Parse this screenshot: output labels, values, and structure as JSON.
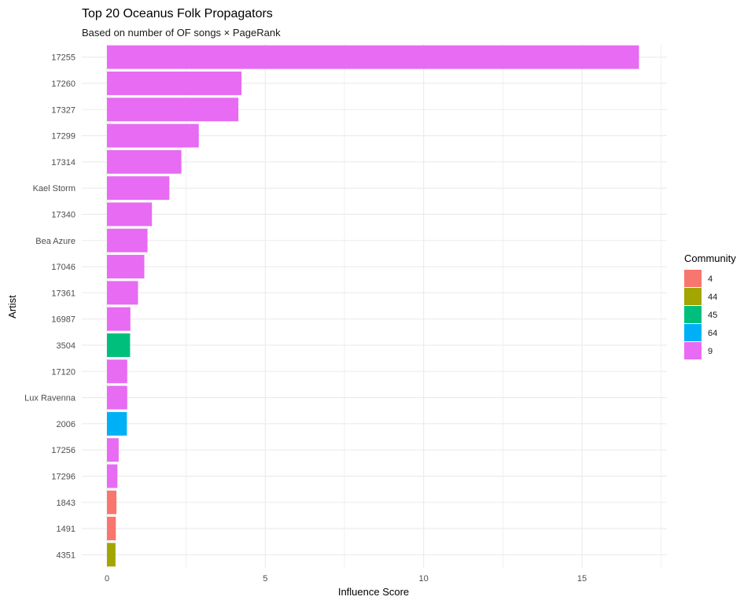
{
  "chart_data": {
    "type": "bar",
    "orientation": "horizontal",
    "title": "Top 20 Oceanus Folk Propagators",
    "subtitle": "Based on number of OF songs × PageRank",
    "xlabel": "Influence Score",
    "ylabel": "Artist",
    "xlim": [
      0,
      17.5
    ],
    "x_ticks": [
      0,
      5,
      10,
      15
    ],
    "grid": true,
    "legend_position": "right",
    "legend": {
      "title": "Community",
      "entries": [
        {
          "label": "4",
          "color": "#F8766D"
        },
        {
          "label": "44",
          "color": "#A3A500"
        },
        {
          "label": "45",
          "color": "#00BF7D"
        },
        {
          "label": "64",
          "color": "#00B0F6"
        },
        {
          "label": "9",
          "color": "#E76BF3"
        }
      ]
    },
    "categories": [
      "17255",
      "17260",
      "17327",
      "17299",
      "17314",
      "Kael Storm",
      "17340",
      "Bea Azure",
      "17046",
      "17361",
      "16987",
      "3504",
      "17120",
      "Lux Ravenna",
      "2006",
      "17256",
      "17296",
      "1843",
      "1491",
      "4351"
    ],
    "values": [
      16.8,
      4.25,
      4.15,
      2.9,
      2.35,
      1.97,
      1.42,
      1.28,
      1.18,
      0.98,
      0.74,
      0.73,
      0.64,
      0.64,
      0.63,
      0.37,
      0.33,
      0.3,
      0.28,
      0.27
    ],
    "communities": [
      "9",
      "9",
      "9",
      "9",
      "9",
      "9",
      "9",
      "9",
      "9",
      "9",
      "9",
      "45",
      "9",
      "9",
      "64",
      "9",
      "9",
      "4",
      "4",
      "44"
    ]
  }
}
